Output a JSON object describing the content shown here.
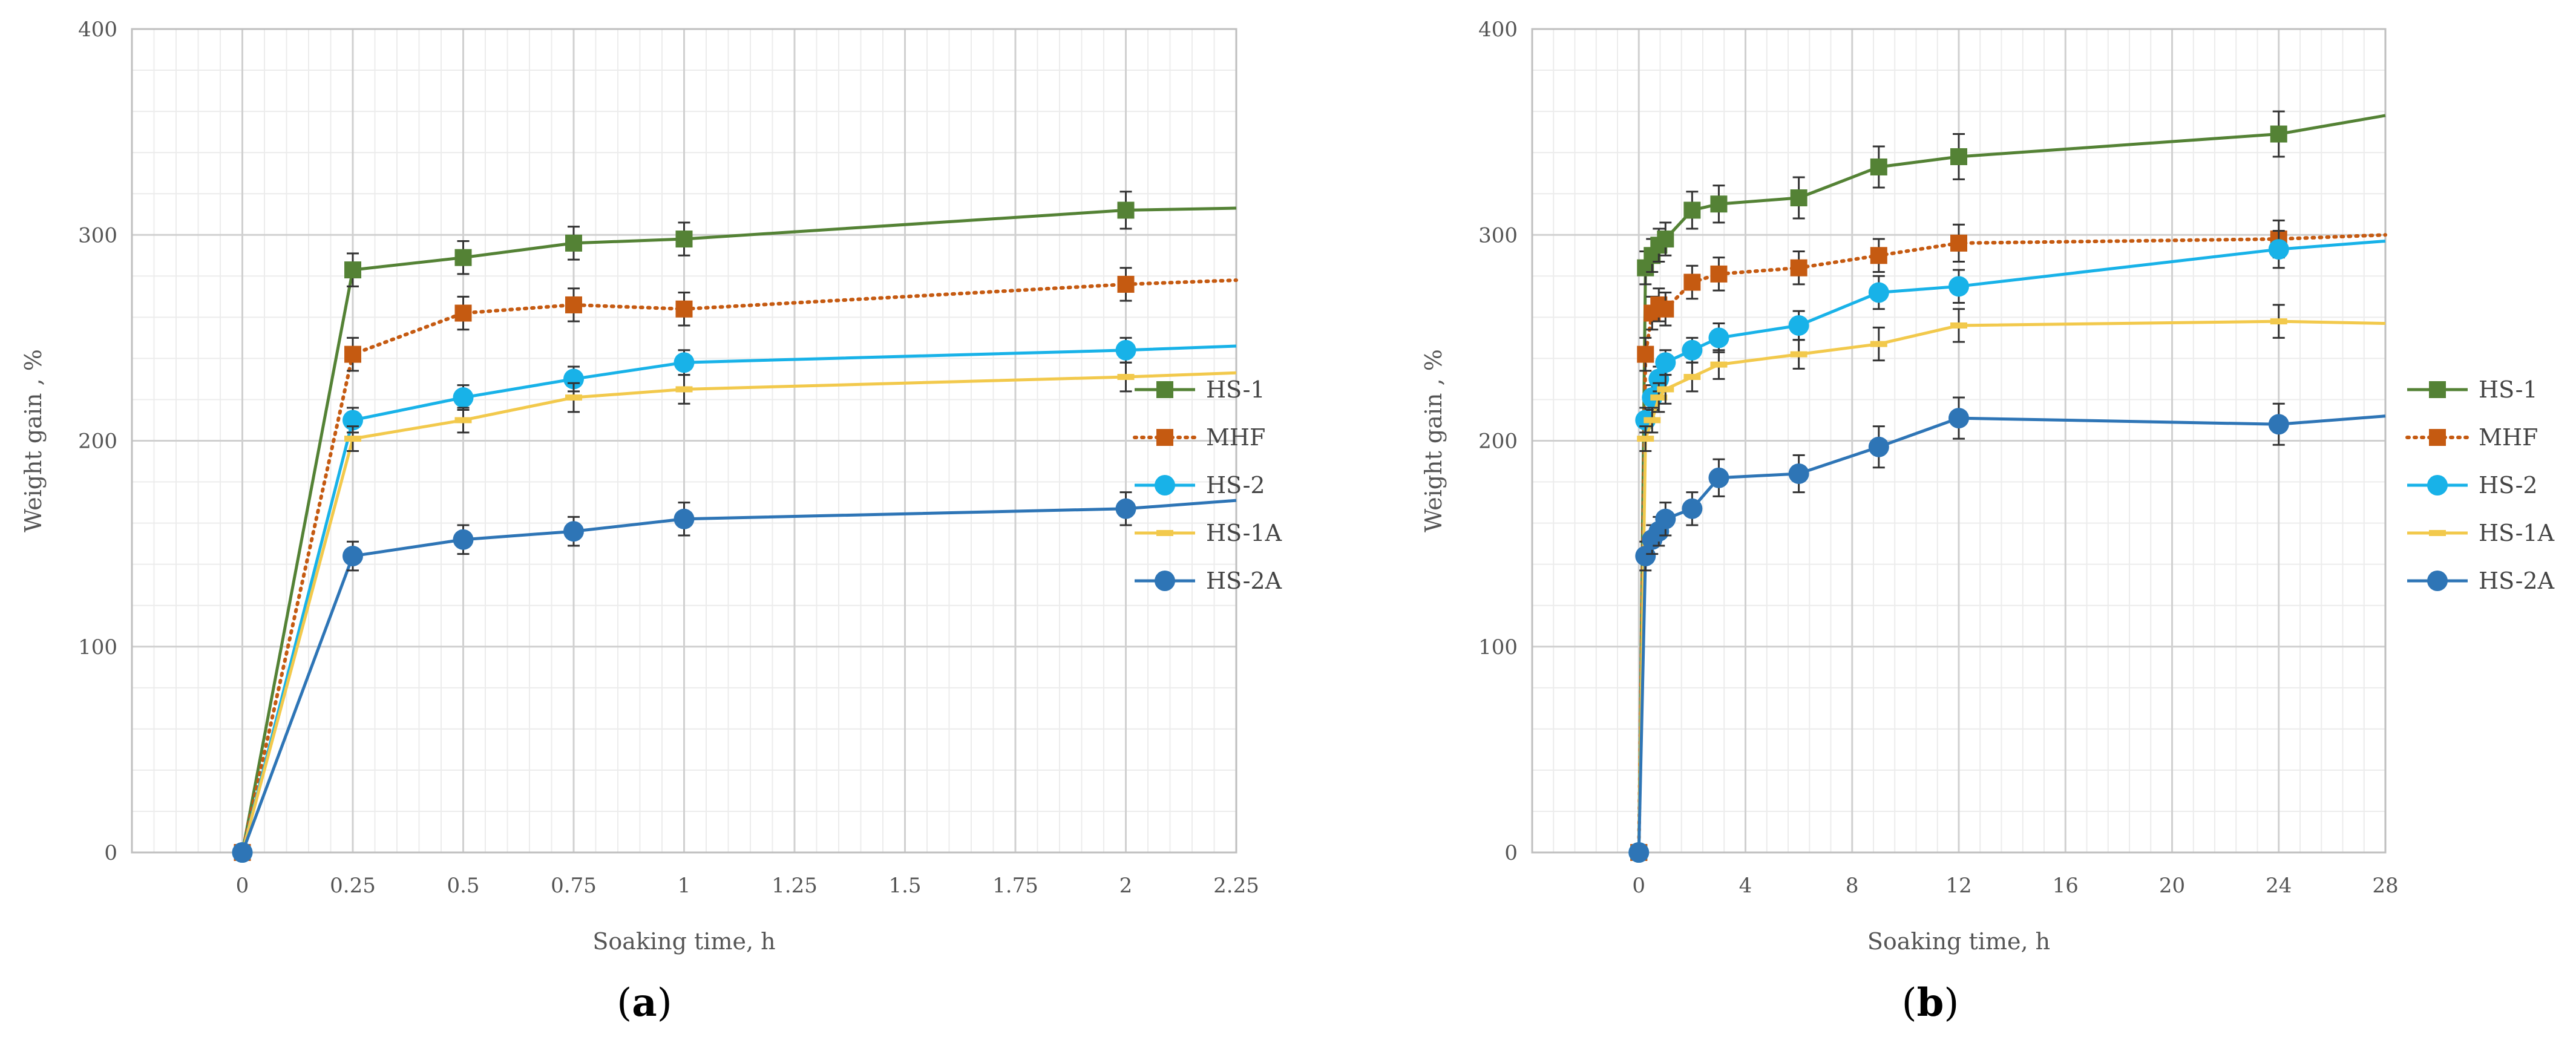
{
  "chart_data": [
    {
      "type": "line",
      "panel_label": "a",
      "xlabel": "Soaking time, h",
      "ylabel": "Weight gain , %",
      "xlim": [
        -0.25,
        2.25
      ],
      "ylim": [
        0,
        400
      ],
      "x_ticks": [
        0,
        0.25,
        0.5,
        0.75,
        1,
        1.25,
        1.5,
        1.75,
        2,
        2.25
      ],
      "x_tick_labels": [
        "0",
        "0.25",
        "0.5",
        "0.75",
        "1",
        "1.25",
        "1.5",
        "1.75",
        "2",
        "2.25"
      ],
      "y_ticks": [
        0,
        100,
        200,
        300,
        400
      ],
      "y_tick_labels": [
        "0",
        "100",
        "200",
        "300",
        "400"
      ],
      "grid": true,
      "legend_position": "right",
      "series": [
        {
          "name": "HS-1",
          "color": "#548235",
          "marker": "square",
          "dash": "solid",
          "x": [
            0,
            0.25,
            0.5,
            0.75,
            1,
            2,
            2.25
          ],
          "y": [
            0,
            283,
            289,
            296,
            298,
            312,
            313
          ],
          "err": [
            0,
            8,
            8,
            8,
            8,
            9,
            null
          ]
        },
        {
          "name": "MHF",
          "color": "#C55A11",
          "marker": "square",
          "dash": "dotted",
          "x": [
            0,
            0.25,
            0.5,
            0.75,
            1,
            2,
            2.25
          ],
          "y": [
            0,
            242,
            262,
            266,
            264,
            276,
            278
          ],
          "err": [
            0,
            8,
            8,
            8,
            8,
            8,
            null
          ]
        },
        {
          "name": "HS-2",
          "color": "#18B2E8",
          "marker": "circle",
          "dash": "solid",
          "x": [
            0,
            0.25,
            0.5,
            0.75,
            1,
            2,
            2.25
          ],
          "y": [
            0,
            210,
            221,
            230,
            238,
            244,
            246
          ],
          "err": [
            0,
            6,
            6,
            6,
            6,
            6,
            null
          ]
        },
        {
          "name": "HS-1A",
          "color": "#F2C94C",
          "marker": "dash",
          "dash": "solid",
          "x": [
            0,
            0.25,
            0.5,
            0.75,
            1,
            2,
            2.25
          ],
          "y": [
            0,
            201,
            210,
            221,
            225,
            231,
            233
          ],
          "err": [
            0,
            6,
            6,
            7,
            7,
            7,
            null
          ]
        },
        {
          "name": "HS-2A",
          "color": "#2E75B6",
          "marker": "circle",
          "dash": "solid",
          "x": [
            0,
            0.25,
            0.5,
            0.75,
            1,
            2,
            2.25
          ],
          "y": [
            0,
            144,
            152,
            156,
            162,
            167,
            171
          ],
          "err": [
            0,
            7,
            7,
            7,
            8,
            8,
            null
          ]
        }
      ]
    },
    {
      "type": "line",
      "panel_label": "b",
      "xlabel": "Soaking time, h",
      "ylabel": "Weight gain , %",
      "xlim": [
        -4,
        28
      ],
      "ylim": [
        0,
        400
      ],
      "x_ticks": [
        0,
        4,
        8,
        12,
        16,
        20,
        24,
        28
      ],
      "x_tick_labels": [
        "0",
        "4",
        "8",
        "12",
        "16",
        "20",
        "24",
        "28"
      ],
      "y_ticks": [
        0,
        100,
        200,
        300,
        400
      ],
      "y_tick_labels": [
        "0",
        "100",
        "200",
        "300",
        "400"
      ],
      "grid": true,
      "legend_position": "right",
      "series": [
        {
          "name": "HS-1",
          "color": "#548235",
          "marker": "square",
          "dash": "solid",
          "x": [
            0,
            0.25,
            0.5,
            0.75,
            1,
            2,
            3,
            6,
            9,
            12,
            24,
            28
          ],
          "y": [
            0,
            284,
            290,
            295,
            298,
            312,
            315,
            318,
            333,
            338,
            349,
            358
          ],
          "err": [
            0,
            8,
            8,
            8,
            8,
            9,
            9,
            10,
            10,
            11,
            11,
            null
          ]
        },
        {
          "name": "MHF",
          "color": "#C55A11",
          "marker": "square",
          "dash": "dotted",
          "x": [
            0,
            0.25,
            0.5,
            0.75,
            1,
            2,
            3,
            6,
            9,
            12,
            24,
            28
          ],
          "y": [
            0,
            242,
            262,
            266,
            264,
            277,
            281,
            284,
            290,
            296,
            298,
            300
          ],
          "err": [
            0,
            8,
            8,
            8,
            8,
            8,
            8,
            8,
            8,
            9,
            9,
            null
          ]
        },
        {
          "name": "HS-2",
          "color": "#18B2E8",
          "marker": "circle",
          "dash": "solid",
          "x": [
            0,
            0.25,
            0.5,
            0.75,
            1,
            2,
            3,
            6,
            9,
            12,
            24,
            28
          ],
          "y": [
            0,
            210,
            221,
            230,
            238,
            244,
            250,
            256,
            272,
            275,
            293,
            297
          ],
          "err": [
            0,
            6,
            6,
            6,
            6,
            6,
            7,
            7,
            8,
            8,
            9,
            null
          ]
        },
        {
          "name": "HS-1A",
          "color": "#F2C94C",
          "marker": "dash",
          "dash": "solid",
          "x": [
            0,
            0.25,
            0.5,
            0.75,
            1,
            2,
            3,
            6,
            9,
            12,
            24,
            28
          ],
          "y": [
            0,
            201,
            210,
            221,
            225,
            231,
            237,
            242,
            247,
            256,
            258,
            257
          ],
          "err": [
            0,
            6,
            6,
            7,
            7,
            7,
            7,
            7,
            8,
            8,
            8,
            null
          ]
        },
        {
          "name": "HS-2A",
          "color": "#2E75B6",
          "marker": "circle",
          "dash": "solid",
          "x": [
            0,
            0.25,
            0.5,
            0.75,
            1,
            2,
            3,
            6,
            9,
            12,
            24,
            28
          ],
          "y": [
            0,
            144,
            152,
            156,
            162,
            167,
            182,
            184,
            197,
            211,
            208,
            212
          ],
          "err": [
            0,
            7,
            7,
            7,
            8,
            8,
            9,
            9,
            10,
            10,
            10,
            null
          ]
        }
      ]
    }
  ]
}
